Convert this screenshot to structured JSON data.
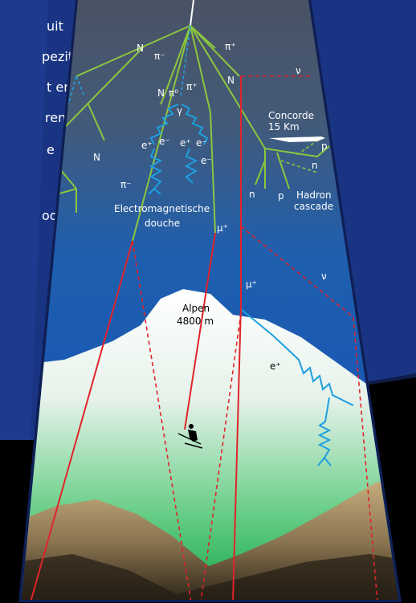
{
  "side_text": [
    "uit",
    "pezit-",
    "t en",
    "ren",
    "e",
    "oor"
  ],
  "labels": [
    "N",
    "π⁻",
    "π⁺",
    "N",
    "ν",
    "N",
    "π⁰",
    "π⁺",
    "γ",
    "Concorde",
    "15 Km",
    "e⁺",
    "e⁻",
    "e⁺",
    "e⁻",
    "e⁻",
    "N",
    "p",
    "n",
    "π⁻",
    "n",
    "p",
    "Hadron",
    "cascade",
    "Electromagnetische",
    "douche",
    "μ⁺",
    "μ⁺",
    "ν",
    "Alpen",
    "4800 m",
    "e⁺"
  ]
}
